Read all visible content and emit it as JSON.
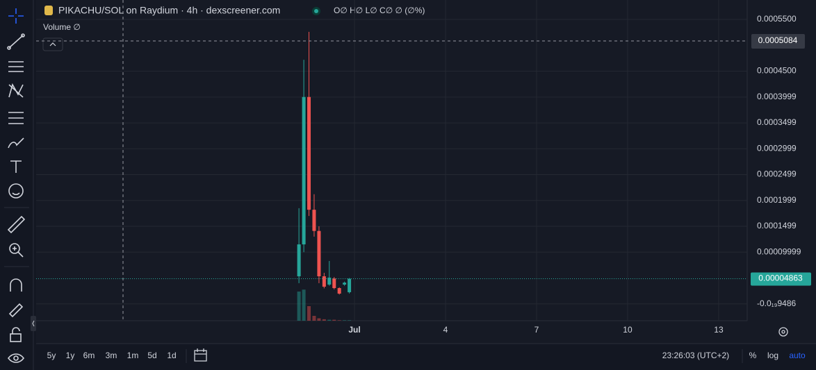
{
  "header": {
    "title": "PIKACHU/SOL on Raydium · 4h · dexscreener.com",
    "ohlc": "O∅  H∅  L∅  C∅  ∅ (∅%)",
    "volume": "Volume  ∅"
  },
  "chart_data": {
    "type": "candlestick",
    "x": [
      -0.83,
      -0.67,
      -0.5,
      -0.33,
      -0.17,
      0,
      0.17,
      0.33,
      0.5,
      0.67,
      0.83
    ],
    "open": [
      5.33e-05,
      0.000115,
      0.0004,
      0.000182,
      0.000141,
      5.33e-05,
      3.73e-05,
      4.93e-05,
      3.05e-05,
      3.73e-05,
      2.25e-05
    ],
    "high": [
      0.000185,
      0.000472,
      0.000526,
      0.000212,
      0.00015,
      6e-05,
      8.29e-05,
      5.2e-05,
      3.2e-05,
      4.3e-05,
      5e-05
    ],
    "low": [
      4e-05,
      0.0001,
      0.00017,
      0.00013,
      4e-05,
      3e-05,
      3.5e-05,
      2.8e-05,
      1.8e-05,
      3.5e-05,
      2e-05
    ],
    "close": [
      0.000115,
      0.0004,
      0.000182,
      0.000141,
      5.33e-05,
      3.32e-05,
      5.07e-05,
      3.05e-05,
      1.98e-05,
      4.1e-05,
      4.863e-05
    ],
    "volume": [
      60,
      64,
      30,
      10,
      5,
      3,
      2,
      2,
      1,
      1,
      1
    ],
    "vlim": [
      0,
      100
    ],
    "up_color": "#26a69a",
    "down_color": "#ef5350",
    "xlim": [
      -9.49,
      13.94
    ],
    "xticks": [
      {
        "value": 1,
        "label": "Jul"
      },
      4,
      7,
      10,
      13
    ],
    "ylim": [
      -3.26e-05,
      0.0005876
    ],
    "yticks": [
      {
        "value": 0.00055,
        "label": "0.0005500"
      },
      {
        "value": 0.00045,
        "label": "0.0004500"
      },
      {
        "value": 0.0003999,
        "label": "0.0003999"
      },
      {
        "value": 0.0003499,
        "label": "0.0003499"
      },
      {
        "value": 0.0002999,
        "label": "0.0002999"
      },
      {
        "value": 0.0002499,
        "label": "0.0002499"
      },
      {
        "value": 0.0001999,
        "label": "0.0001999"
      },
      {
        "value": 0.0001499,
        "label": "0.0001499"
      },
      {
        "value": 9.999e-05,
        "label": "0.00009999"
      },
      {
        "value": -9.486e-22,
        "label": "-0.0₁₉9486"
      }
    ],
    "crosshair_price": 0.0005084,
    "last_price": 4.863e-05,
    "grid": true
  },
  "bottom_bar": {
    "ranges": [
      "5y",
      "1y",
      "6m",
      "3m",
      "1m",
      "5d",
      "1d"
    ],
    "time": "23:26:03 (UTC+2)",
    "percent": "%",
    "log": "log",
    "auto": "auto"
  }
}
